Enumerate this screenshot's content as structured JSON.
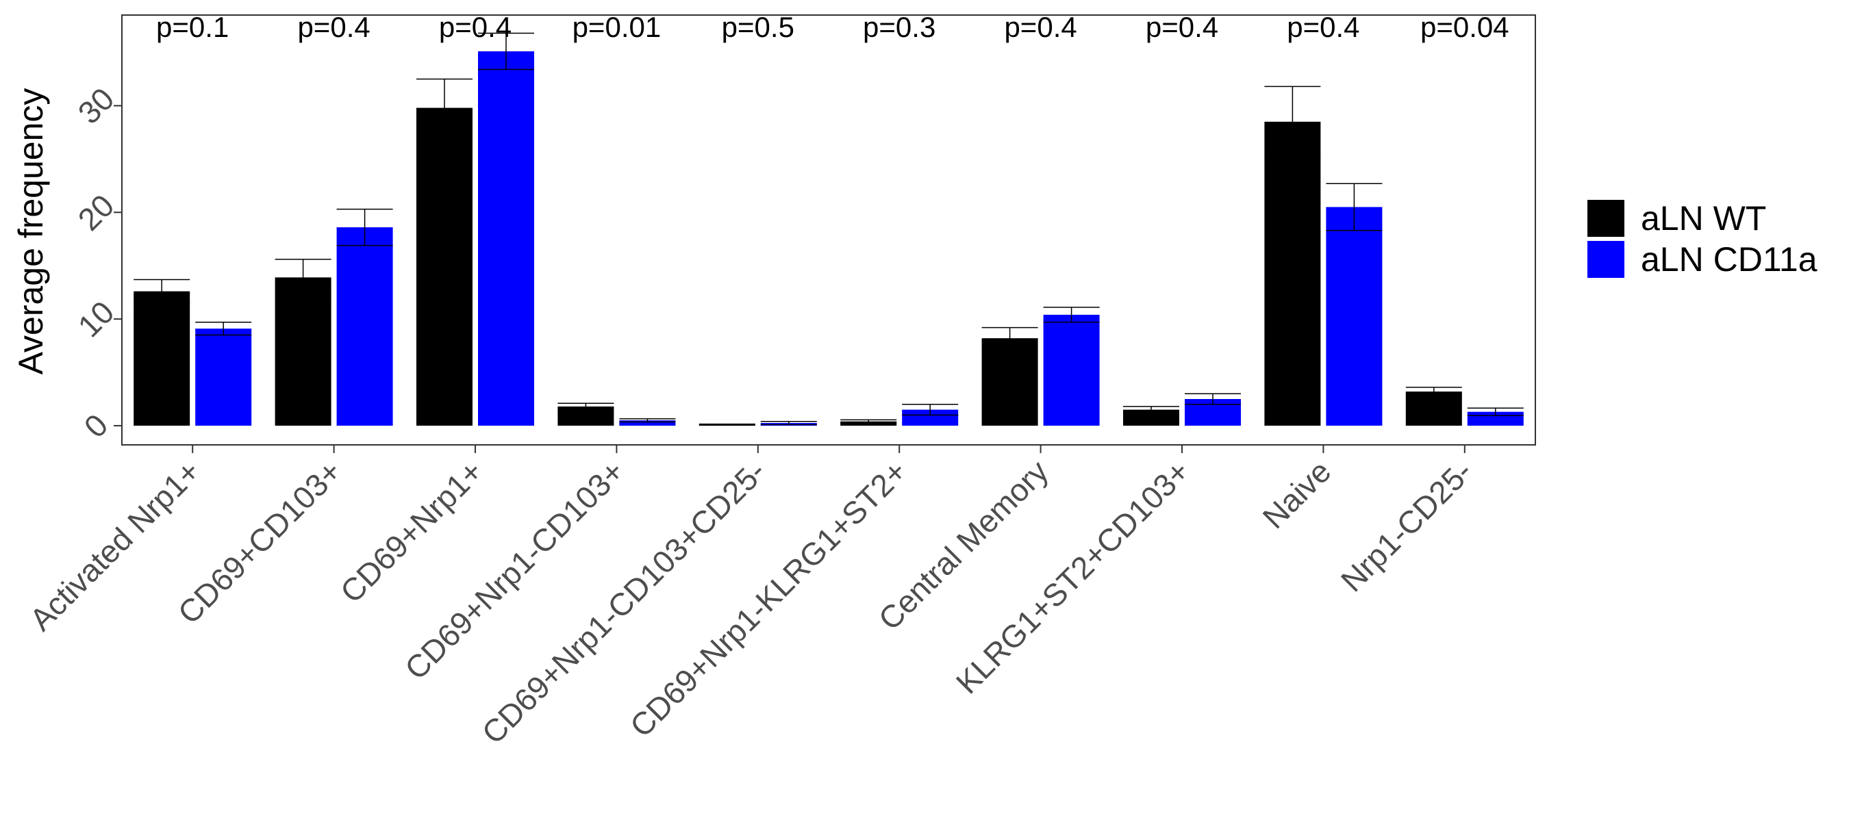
{
  "chart_data": {
    "type": "bar",
    "ylabel": "Average frequency",
    "xlabel": "",
    "title": "",
    "ylim": [
      -1.8,
      38.5
    ],
    "yticks": [
      0,
      10,
      20,
      30
    ],
    "grid": false,
    "legend_position": "right",
    "categories": [
      "Activated Nrp1+",
      "CD69+CD103+",
      "CD69+Nrp1+",
      "CD69+Nrp1-CD103+",
      "CD69+Nrp1-CD103+CD25-",
      "CD69+Nrp1-KLRG1+ST2+",
      "Central Memory",
      "KLRG1+ST2+CD103+",
      "Naive",
      "Nrp1-CD25-"
    ],
    "pvalues": [
      "p=0.1",
      "p=0.4",
      "p=0.4",
      "p=0.01",
      "p=0.5",
      "p=0.3",
      "p=0.4",
      "p=0.4",
      "p=0.4",
      "p=0.04"
    ],
    "series": [
      {
        "name": "aLN WT",
        "color": "#000000",
        "values": [
          12.6,
          13.9,
          29.8,
          1.8,
          0.1,
          0.4,
          8.2,
          1.5,
          28.5,
          3.2
        ],
        "errors": [
          1.1,
          1.7,
          2.7,
          0.3,
          0.05,
          0.15,
          1.0,
          0.3,
          3.3,
          0.4
        ]
      },
      {
        "name": "aLN CD11a",
        "color": "#0000FF",
        "values": [
          9.1,
          18.6,
          35.1,
          0.5,
          0.25,
          1.5,
          10.4,
          2.5,
          20.5,
          1.3
        ],
        "errors": [
          0.6,
          1.7,
          1.7,
          0.15,
          0.15,
          0.5,
          0.7,
          0.5,
          2.2,
          0.35
        ]
      }
    ]
  }
}
